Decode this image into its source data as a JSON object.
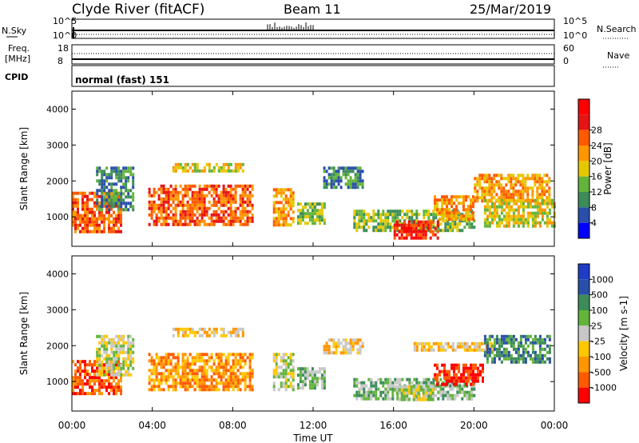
{
  "header": {
    "site": "Clyde River (fitACF)",
    "beam": "Beam 11",
    "date": "25/Mar/2019"
  },
  "strips": {
    "nsky_label": "N.Sky",
    "nsearch_label": "N.Search",
    "freq_label": "Freq.",
    "freq_unit": "[MHz]",
    "nave_label": "Nave",
    "cpid_label": "CPID",
    "cpid_value": "normal (fast) 151",
    "noise_ticks_left": [
      "10^5",
      "10^0"
    ],
    "noise_ticks_right": [
      "10^5",
      "10^0"
    ],
    "freq_ticks": [
      "18",
      "8"
    ],
    "nave_ticks": [
      "60",
      "0"
    ]
  },
  "colors": {
    "power": [
      "#0000ff",
      "#2a4faa",
      "#3c8c5a",
      "#64b43c",
      "#e6c800",
      "#ff9600",
      "#ff5a00",
      "#e61414",
      "#ff0000"
    ],
    "velocity": [
      "#ff0000",
      "#ff5a00",
      "#ff9600",
      "#ffc800",
      "#c8c8c8",
      "#64b43c",
      "#3c8c5a",
      "#2a4faa",
      "#1e3cc8"
    ]
  },
  "chart_data": [
    {
      "type": "heatmap",
      "name": "power",
      "ylabel": "Slant Range [km]",
      "xlabel": "Time UT",
      "x_ticks": [
        "00:00",
        "04:00",
        "08:00",
        "12:00",
        "16:00",
        "20:00",
        "00:00"
      ],
      "y_ticks": [
        1000,
        2000,
        3000,
        4000
      ],
      "ylim": [
        180,
        4500
      ],
      "xlim_hours": [
        0,
        24
      ],
      "colorbar_label": "Power [dB]",
      "colorbar_ticks": [
        "4",
        "8",
        "12",
        "16",
        "20",
        "24",
        "28"
      ],
      "regions": [
        {
          "t0": 0.0,
          "t1": 2.5,
          "r0": 600,
          "r1": 1700,
          "level": 7
        },
        {
          "t0": 1.2,
          "t1": 3.0,
          "r0": 1200,
          "r1": 2400,
          "level": 3
        },
        {
          "t0": 3.8,
          "t1": 9.0,
          "r0": 800,
          "r1": 1900,
          "level": 7
        },
        {
          "t0": 5.0,
          "t1": 8.5,
          "r0": 2300,
          "r1": 2500,
          "level": 5
        },
        {
          "t0": 10.0,
          "t1": 11.0,
          "r0": 800,
          "r1": 1800,
          "level": 6
        },
        {
          "t0": 11.2,
          "t1": 12.6,
          "r0": 800,
          "r1": 1400,
          "level": 4
        },
        {
          "t0": 12.5,
          "t1": 14.5,
          "r0": 1800,
          "r1": 2400,
          "level": 3
        },
        {
          "t0": 14.0,
          "t1": 20.0,
          "r0": 600,
          "r1": 1200,
          "level": 4
        },
        {
          "t0": 16.0,
          "t1": 18.2,
          "r0": 400,
          "r1": 900,
          "level": 8
        },
        {
          "t0": 18.0,
          "t1": 20.0,
          "r0": 900,
          "r1": 1600,
          "level": 6
        },
        {
          "t0": 20.0,
          "t1": 23.8,
          "r0": 1400,
          "r1": 2200,
          "level": 6
        },
        {
          "t0": 20.5,
          "t1": 24.0,
          "r0": 700,
          "r1": 1500,
          "level": 5
        }
      ]
    },
    {
      "type": "heatmap",
      "name": "velocity",
      "ylabel": "Slant Range [km]",
      "xlabel": "Time UT",
      "x_ticks": [
        "00:00",
        "04:00",
        "08:00",
        "12:00",
        "16:00",
        "20:00",
        "00:00"
      ],
      "y_ticks": [
        1000,
        2000,
        3000,
        4000
      ],
      "ylim": [
        180,
        4500
      ],
      "xlim_hours": [
        0,
        24
      ],
      "colorbar_label": "Velocity [m s-1]",
      "colorbar_ticks": [
        "1000",
        "500",
        "100",
        "25",
        "-25",
        "-100",
        "-500",
        "-1000"
      ],
      "regions": [
        {
          "t0": 0.0,
          "t1": 2.5,
          "r0": 700,
          "r1": 1600,
          "level": 2
        },
        {
          "t0": 1.2,
          "t1": 3.0,
          "r0": 1200,
          "r1": 2300,
          "level": 5
        },
        {
          "t0": 3.8,
          "t1": 9.0,
          "r0": 800,
          "r1": 1800,
          "level": 3
        },
        {
          "t0": 5.0,
          "t1": 8.5,
          "r0": 2300,
          "r1": 2500,
          "level": 4
        },
        {
          "t0": 10.0,
          "t1": 11.0,
          "r0": 800,
          "r1": 1800,
          "level": 5
        },
        {
          "t0": 11.2,
          "t1": 12.6,
          "r0": 800,
          "r1": 1400,
          "level": 6
        },
        {
          "t0": 12.5,
          "t1": 14.5,
          "r0": 1800,
          "r1": 2200,
          "level": 4
        },
        {
          "t0": 14.0,
          "t1": 20.0,
          "r0": 500,
          "r1": 1100,
          "level": 6
        },
        {
          "t0": 16.0,
          "t1": 18.0,
          "r0": 500,
          "r1": 900,
          "level": 5
        },
        {
          "t0": 18.0,
          "t1": 20.5,
          "r0": 900,
          "r1": 1500,
          "level": 1
        },
        {
          "t0": 17.0,
          "t1": 21.0,
          "r0": 1900,
          "r1": 2100,
          "level": 4
        },
        {
          "t0": 20.5,
          "t1": 23.8,
          "r0": 1500,
          "r1": 2300,
          "level": 7
        }
      ]
    }
  ]
}
